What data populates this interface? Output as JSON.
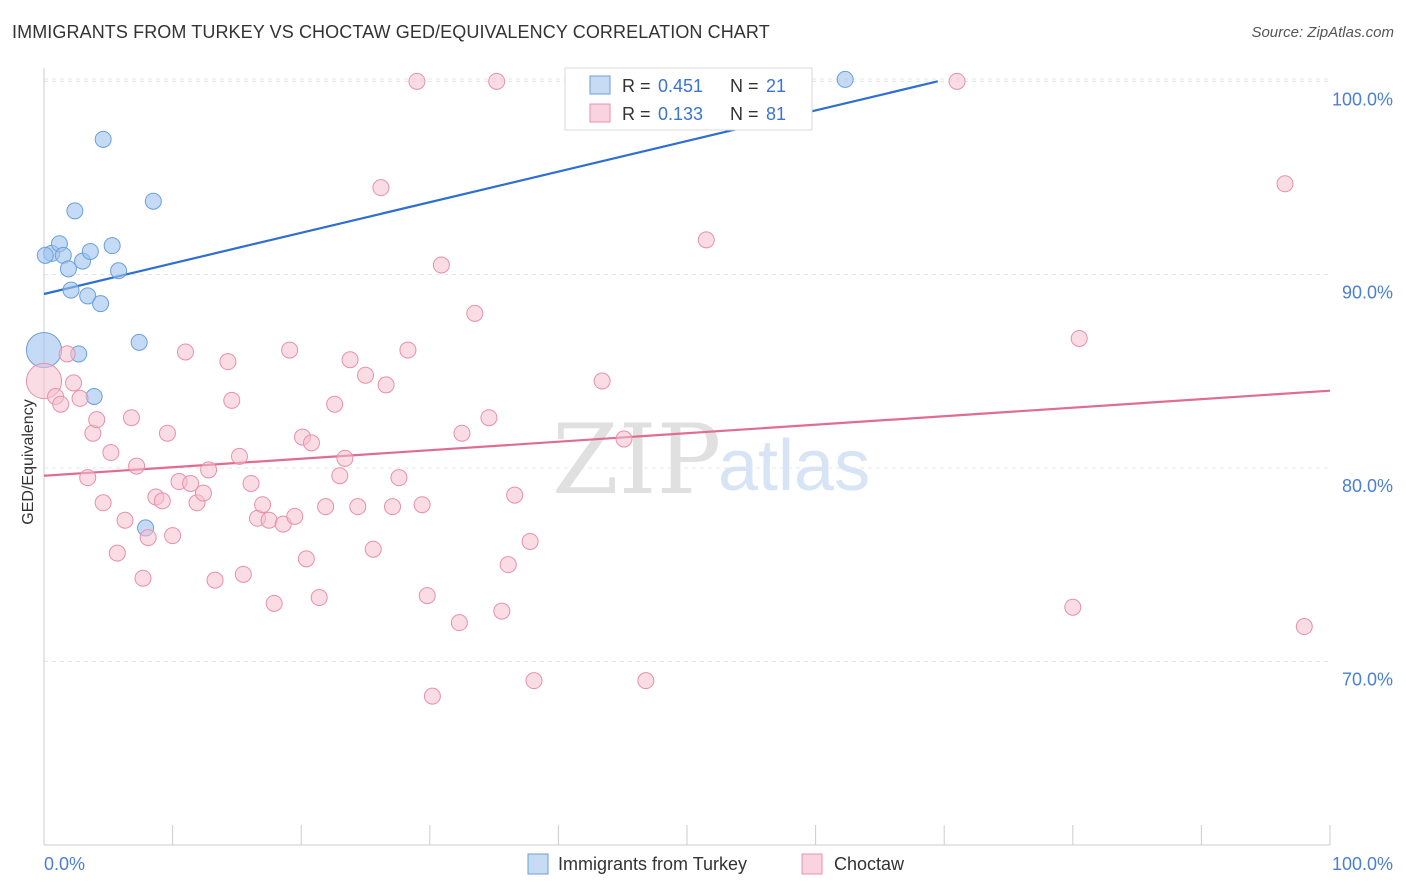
{
  "header": {
    "title": "IMMIGRANTS FROM TURKEY VS CHOCTAW GED/EQUIVALENCY CORRELATION CHART",
    "source": "Source: ZipAtlas.com"
  },
  "watermark": {
    "zip": "ZIP",
    "atlas": "atlas"
  },
  "chart_data": {
    "type": "scatter",
    "title": "IMMIGRANTS FROM TURKEY VS CHOCTAW GED/EQUIVALENCY CORRELATION CHART",
    "ylabel": "GED/Equivalency",
    "xlabel": "",
    "xlim": [
      0,
      100
    ],
    "ylim": [
      60.5,
      101
    ],
    "x_tick_labels": [
      "0.0%",
      "100.0%"
    ],
    "y_ticks": [
      70,
      80,
      90,
      100
    ],
    "y_tick_labels": [
      "70.0%",
      "80.0%",
      "90.0%",
      "100.0%"
    ],
    "legend": {
      "placement": "bottom-center"
    },
    "stats_box": {
      "placement": "top-center"
    },
    "series": [
      {
        "name": "Immigrants from Turkey",
        "color": "#9fc3ef",
        "edge": "#6a9fdc",
        "line_color": "#2f6fd0",
        "r_label": "R =",
        "r_value": "0.451",
        "n_label": "N =",
        "n_value": "21",
        "trend": {
          "x0": 0,
          "y0": 89.0,
          "x1": 69.5,
          "y1": 100.0
        },
        "points": [
          [
            0.0,
            86.1,
            2.2
          ],
          [
            0.6,
            91.1,
            1
          ],
          [
            1.2,
            91.6,
            1
          ],
          [
            1.5,
            91.0,
            1
          ],
          [
            1.9,
            90.3,
            1
          ],
          [
            2.1,
            89.2,
            1
          ],
          [
            2.4,
            93.3,
            1
          ],
          [
            2.7,
            85.9,
            1
          ],
          [
            3.0,
            90.7,
            1
          ],
          [
            3.4,
            88.9,
            1
          ],
          [
            3.6,
            91.2,
            1
          ],
          [
            3.9,
            83.7,
            1
          ],
          [
            4.4,
            88.5,
            1
          ],
          [
            4.6,
            97.0,
            1
          ],
          [
            5.3,
            91.5,
            1
          ],
          [
            5.8,
            90.2,
            1
          ],
          [
            7.4,
            86.5,
            1
          ],
          [
            7.9,
            76.9,
            1
          ],
          [
            8.5,
            93.8,
            1
          ],
          [
            62.3,
            100.1,
            1
          ],
          [
            0.1,
            91.0,
            1
          ]
        ]
      },
      {
        "name": "Choctaw",
        "color": "#f6bfd0",
        "edge": "#e890ac",
        "line_color": "#e06c92",
        "r_label": "R =",
        "r_value": "0.133",
        "n_label": "N =",
        "n_value": "81",
        "trend": {
          "x0": 0,
          "y0": 79.6,
          "x1": 100,
          "y1": 84.0
        },
        "points": [
          [
            0.0,
            84.5,
            2.2
          ],
          [
            0.9,
            83.7,
            1
          ],
          [
            1.3,
            83.3,
            1
          ],
          [
            1.8,
            85.9,
            1
          ],
          [
            2.3,
            84.4,
            1
          ],
          [
            2.8,
            83.6,
            1
          ],
          [
            3.4,
            79.5,
            1
          ],
          [
            3.8,
            81.8,
            1
          ],
          [
            4.1,
            82.5,
            1
          ],
          [
            4.6,
            78.2,
            1
          ],
          [
            5.2,
            80.8,
            1
          ],
          [
            5.7,
            75.6,
            1
          ],
          [
            6.3,
            77.3,
            1
          ],
          [
            6.8,
            82.6,
            1
          ],
          [
            7.2,
            80.1,
            1
          ],
          [
            7.7,
            74.3,
            1
          ],
          [
            8.1,
            76.4,
            1
          ],
          [
            8.7,
            78.5,
            1
          ],
          [
            9.2,
            78.3,
            1
          ],
          [
            9.6,
            81.8,
            1
          ],
          [
            10.0,
            76.5,
            1
          ],
          [
            10.5,
            79.3,
            1
          ],
          [
            11.0,
            86.0,
            1
          ],
          [
            11.4,
            79.2,
            1
          ],
          [
            11.9,
            78.2,
            1
          ],
          [
            12.4,
            78.7,
            1
          ],
          [
            12.8,
            79.9,
            1
          ],
          [
            13.3,
            74.2,
            1
          ],
          [
            14.3,
            85.5,
            1
          ],
          [
            14.6,
            83.5,
            1
          ],
          [
            15.2,
            80.6,
            1
          ],
          [
            15.5,
            74.5,
            1
          ],
          [
            16.1,
            79.2,
            1
          ],
          [
            16.6,
            77.4,
            1
          ],
          [
            17.0,
            78.1,
            1
          ],
          [
            17.5,
            77.3,
            1
          ],
          [
            17.9,
            73.0,
            1
          ],
          [
            18.6,
            77.1,
            1
          ],
          [
            19.1,
            86.1,
            1
          ],
          [
            19.5,
            77.5,
            1
          ],
          [
            20.1,
            81.6,
            1
          ],
          [
            20.4,
            75.3,
            1
          ],
          [
            20.8,
            81.3,
            1
          ],
          [
            21.4,
            73.3,
            1
          ],
          [
            21.9,
            78.0,
            1
          ],
          [
            22.6,
            83.3,
            1
          ],
          [
            23.0,
            79.6,
            1
          ],
          [
            23.4,
            80.5,
            1
          ],
          [
            23.8,
            85.6,
            1
          ],
          [
            24.4,
            78.0,
            1
          ],
          [
            25.0,
            84.8,
            1
          ],
          [
            25.6,
            75.8,
            1
          ],
          [
            26.2,
            94.5,
            1
          ],
          [
            26.6,
            84.3,
            1
          ],
          [
            27.1,
            78.0,
            1
          ],
          [
            27.6,
            79.5,
            1
          ],
          [
            28.3,
            86.1,
            1
          ],
          [
            29.0,
            100.0,
            1
          ],
          [
            29.4,
            78.1,
            1
          ],
          [
            29.8,
            73.4,
            1
          ],
          [
            30.2,
            68.2,
            1
          ],
          [
            30.9,
            90.5,
            1
          ],
          [
            32.3,
            72.0,
            1
          ],
          [
            32.5,
            81.8,
            1
          ],
          [
            33.5,
            88.0,
            1
          ],
          [
            34.6,
            82.6,
            1
          ],
          [
            35.2,
            100.0,
            1
          ],
          [
            35.6,
            72.6,
            1
          ],
          [
            36.1,
            75.0,
            1
          ],
          [
            36.6,
            78.6,
            1
          ],
          [
            37.8,
            76.2,
            1
          ],
          [
            38.1,
            69.0,
            1
          ],
          [
            43.4,
            84.5,
            1
          ],
          [
            45.1,
            81.5,
            1
          ],
          [
            46.8,
            69.0,
            1
          ],
          [
            51.5,
            91.8,
            1
          ],
          [
            71.0,
            100.0,
            1
          ],
          [
            80.0,
            72.8,
            1
          ],
          [
            80.5,
            86.7,
            1
          ],
          [
            96.5,
            94.7,
            1
          ],
          [
            98.0,
            71.8,
            1
          ]
        ]
      }
    ]
  }
}
